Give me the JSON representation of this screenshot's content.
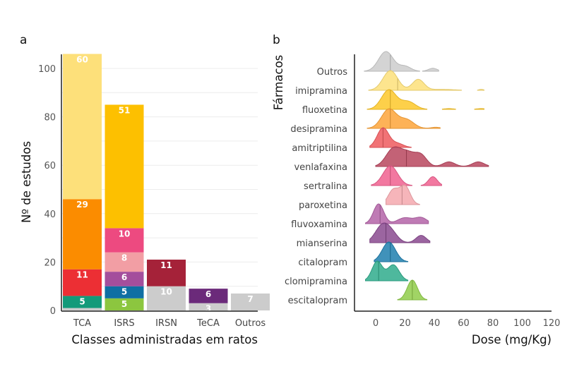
{
  "chart_data": [
    {
      "panel": "a",
      "type": "bar",
      "stacked": true,
      "title": "",
      "xlabel": "Classes administradas em ratos",
      "ylabel": "Nº de estudos",
      "ylim": [
        0,
        106
      ],
      "yticks": [
        0,
        20,
        40,
        60,
        80,
        100
      ],
      "grid": true,
      "categories": [
        "TCA",
        "ISRS",
        "IRSN",
        "TeCA",
        "Outros"
      ],
      "stacks": [
        {
          "category": "TCA",
          "segments": [
            {
              "value": 1,
              "color": "#cccccc",
              "label": ""
            },
            {
              "value": 5,
              "color": "#139a7a",
              "label": "5"
            },
            {
              "value": 11,
              "color": "#ec2f34",
              "label": "11"
            },
            {
              "value": 29,
              "color": "#fb8c00",
              "label": "29"
            },
            {
              "value": 60,
              "color": "#fde07a",
              "label": "60"
            }
          ]
        },
        {
          "category": "ISRS",
          "segments": [
            {
              "value": 5,
              "color": "#8cc63f",
              "label": "5"
            },
            {
              "value": 5,
              "color": "#0f6fa3",
              "label": "5"
            },
            {
              "value": 6,
              "color": "#a44e9c",
              "label": "6"
            },
            {
              "value": 8,
              "color": "#f29ea4",
              "label": "8"
            },
            {
              "value": 10,
              "color": "#ed4a80",
              "label": "10"
            },
            {
              "value": 51,
              "color": "#fdc000",
              "label": "51"
            }
          ]
        },
        {
          "category": "IRSN",
          "segments": [
            {
              "value": 10,
              "color": "#cccccc",
              "label": "10"
            },
            {
              "value": 11,
              "color": "#a52239",
              "label": "11"
            }
          ]
        },
        {
          "category": "TeCA",
          "segments": [
            {
              "value": 3,
              "color": "#cccccc",
              "label": "3"
            },
            {
              "value": 6,
              "color": "#6b2a7a",
              "label": "6"
            }
          ]
        },
        {
          "category": "Outros",
          "segments": [
            {
              "value": 7,
              "color": "#cccccc",
              "label": "7"
            }
          ]
        }
      ]
    },
    {
      "panel": "b",
      "type": "area",
      "subtype": "ridgeline",
      "xlabel": "Dose (mg/Kg)",
      "ylabel": "Fármacos",
      "xlim": [
        -15,
        120
      ],
      "xticks": [
        0,
        20,
        40,
        60,
        80,
        100,
        120
      ],
      "rows": [
        {
          "name": "Outros",
          "color": "#cccccc",
          "median": 10,
          "xmin": -8,
          "xmax": 43,
          "components": [
            [
              7,
              5,
              1.0
            ],
            [
              20,
              4,
              0.25
            ],
            [
              39,
              3,
              0.15
            ]
          ]
        },
        {
          "name": "imipramina",
          "color": "#fde07a",
          "median": 15,
          "xmin": -5,
          "xmax": 74,
          "components": [
            [
              10,
              5,
              1.0
            ],
            [
              29,
              4,
              0.55
            ],
            [
              45,
              8,
              0.05
            ],
            [
              72,
              1.5,
              0.05
            ]
          ]
        },
        {
          "name": "fluoxetina",
          "color": "#fdc82a",
          "median": 10,
          "xmin": -6,
          "xmax": 74,
          "components": [
            [
              9,
              5,
              1.0
            ],
            [
              22,
              5,
              0.4
            ],
            [
              50,
              3,
              0.04
            ],
            [
              72,
              3,
              0.04
            ]
          ]
        },
        {
          "name": "desipramina",
          "color": "#fda53a",
          "median": 10,
          "xmin": -6,
          "xmax": 44,
          "components": [
            [
              9,
              5,
              1.0
            ],
            [
              21,
              5,
              0.45
            ],
            [
              41,
              3,
              0.06
            ]
          ]
        },
        {
          "name": "amitriptilina",
          "color": "#ef5a5e",
          "median": 5,
          "xmin": -4,
          "xmax": 26,
          "components": [
            [
              5,
              4,
              1.0
            ],
            [
              15,
              4,
              0.2
            ]
          ]
        },
        {
          "name": "venlafaxina",
          "color": "#b8465e",
          "median": 21,
          "xmin": 0,
          "xmax": 77,
          "components": [
            [
              12,
              5,
              0.75
            ],
            [
              22,
              5,
              0.55
            ],
            [
              31,
              4,
              0.45
            ],
            [
              50,
              4,
              0.2
            ],
            [
              70,
              4,
              0.2
            ]
          ]
        },
        {
          "name": "sertralina",
          "color": "#f0608f",
          "median": 10,
          "xmin": -3,
          "xmax": 45,
          "components": [
            [
              10,
              5,
              1.0
            ],
            [
              39,
              3,
              0.45
            ]
          ]
        },
        {
          "name": "paroxetina",
          "color": "#f4a8ae",
          "median": 18,
          "xmin": 7,
          "xmax": 30,
          "components": [
            [
              12,
              3.5,
              0.75
            ],
            [
              20,
              3.5,
              0.95
            ]
          ]
        },
        {
          "name": "fluvoxamina",
          "color": "#b464a8",
          "median": 3,
          "xmin": -7,
          "xmax": 36,
          "components": [
            [
              2,
              3.5,
              1.0
            ],
            [
              20,
              5,
              0.3
            ],
            [
              31,
              4,
              0.3
            ]
          ]
        },
        {
          "name": "mianserina",
          "color": "#8a4a8f",
          "median": 7,
          "xmin": -4,
          "xmax": 37,
          "components": [
            [
              5,
              5,
              1.0
            ],
            [
              12,
              4,
              0.3
            ],
            [
              31,
              3.5,
              0.4
            ]
          ]
        },
        {
          "name": "citalopram",
          "color": "#1f7fae",
          "median": 10,
          "xmin": -1,
          "xmax": 22,
          "components": [
            [
              9,
              4.5,
              1.0
            ]
          ]
        },
        {
          "name": "clomipramina",
          "color": "#2fab8c",
          "median": 2,
          "xmin": -7,
          "xmax": 22,
          "components": [
            [
              1,
              3.5,
              0.85
            ],
            [
              12,
              4,
              0.7
            ]
          ]
        },
        {
          "name": "escitalopram",
          "color": "#90cc4a",
          "median": 25,
          "xmin": 15,
          "xmax": 35,
          "components": [
            [
              25,
              3.5,
              1.0
            ]
          ]
        }
      ]
    }
  ]
}
